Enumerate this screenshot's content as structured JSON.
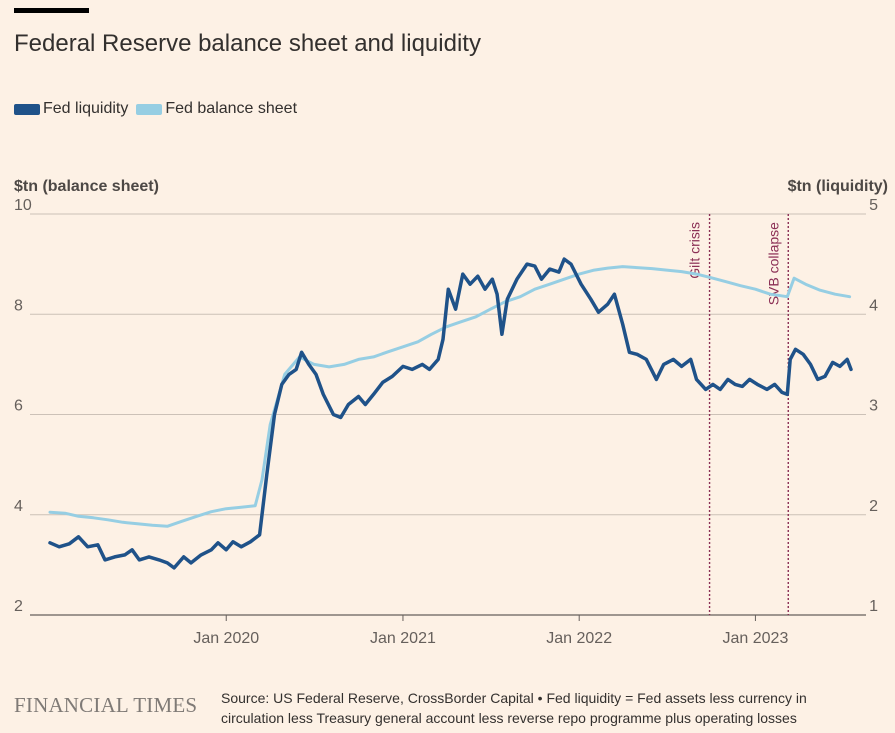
{
  "header": {
    "title": "Federal Reserve balance sheet and liquidity"
  },
  "legend": {
    "items": [
      {
        "label": "Fed liquidity",
        "color": "#1f5289"
      },
      {
        "label": "Fed balance sheet",
        "color": "#96cee3"
      }
    ]
  },
  "footer": {
    "brand": "FINANCIAL TIMES",
    "source": "Source: US Federal Reserve, CrossBorder Capital • Fed liquidity = Fed assets less currency in circulation less Treasury general account less reverse repo programme plus operating losses"
  },
  "chart_data": {
    "type": "line",
    "title": "Federal Reserve balance sheet and liquidity",
    "grid": true,
    "legend_position": "top-left",
    "y_left": {
      "label": "$tn (balance sheet)",
      "range": [
        2,
        10
      ],
      "ticks": [
        "2",
        "4",
        "6",
        "8",
        "10"
      ]
    },
    "y_right": {
      "label": "$tn (liquidity)",
      "range": [
        1,
        5
      ],
      "ticks": [
        "1",
        "2",
        "3",
        "4",
        "5"
      ]
    },
    "x": {
      "range": [
        "2019-01-01",
        "2023-07-20"
      ],
      "ticks": [
        {
          "date": "2020-01-01",
          "label": "Jan 2020"
        },
        {
          "date": "2021-01-01",
          "label": "Jan 2021"
        },
        {
          "date": "2022-01-01",
          "label": "Jan 2022"
        },
        {
          "date": "2023-01-01",
          "label": "Jan 2023"
        }
      ]
    },
    "annotations": [
      {
        "date": "2022-09-28",
        "label": "Gilt crisis"
      },
      {
        "date": "2023-03-10",
        "label": "SVB collapse"
      }
    ],
    "series": [
      {
        "name": "Fed balance sheet",
        "axis": "left",
        "color": "#96cee3",
        "points": [
          [
            "2019-01-01",
            4.05
          ],
          [
            "2019-02-01",
            4.03
          ],
          [
            "2019-03-01",
            3.97
          ],
          [
            "2019-04-01",
            3.94
          ],
          [
            "2019-05-01",
            3.9
          ],
          [
            "2019-06-01",
            3.85
          ],
          [
            "2019-07-01",
            3.82
          ],
          [
            "2019-08-01",
            3.79
          ],
          [
            "2019-09-01",
            3.77
          ],
          [
            "2019-10-01",
            3.87
          ],
          [
            "2019-11-01",
            3.97
          ],
          [
            "2019-12-01",
            4.06
          ],
          [
            "2020-01-01",
            4.12
          ],
          [
            "2020-02-01",
            4.15
          ],
          [
            "2020-03-01",
            4.18
          ],
          [
            "2020-03-15",
            4.7
          ],
          [
            "2020-04-01",
            5.8
          ],
          [
            "2020-05-01",
            6.8
          ],
          [
            "2020-06-01",
            7.15
          ],
          [
            "2020-07-01",
            7.0
          ],
          [
            "2020-08-01",
            6.95
          ],
          [
            "2020-09-01",
            7.0
          ],
          [
            "2020-10-01",
            7.1
          ],
          [
            "2020-11-01",
            7.15
          ],
          [
            "2020-12-01",
            7.25
          ],
          [
            "2021-01-01",
            7.35
          ],
          [
            "2021-02-01",
            7.45
          ],
          [
            "2021-03-01",
            7.6
          ],
          [
            "2021-04-01",
            7.75
          ],
          [
            "2021-05-01",
            7.85
          ],
          [
            "2021-06-01",
            7.95
          ],
          [
            "2021-07-01",
            8.1
          ],
          [
            "2021-08-01",
            8.25
          ],
          [
            "2021-09-01",
            8.35
          ],
          [
            "2021-10-01",
            8.5
          ],
          [
            "2021-11-01",
            8.6
          ],
          [
            "2021-12-01",
            8.7
          ],
          [
            "2022-01-01",
            8.8
          ],
          [
            "2022-02-01",
            8.88
          ],
          [
            "2022-03-01",
            8.92
          ],
          [
            "2022-04-01",
            8.95
          ],
          [
            "2022-05-01",
            8.93
          ],
          [
            "2022-06-01",
            8.91
          ],
          [
            "2022-07-01",
            8.88
          ],
          [
            "2022-08-01",
            8.85
          ],
          [
            "2022-09-01",
            8.8
          ],
          [
            "2022-10-01",
            8.73
          ],
          [
            "2022-11-01",
            8.65
          ],
          [
            "2022-12-01",
            8.57
          ],
          [
            "2023-01-01",
            8.5
          ],
          [
            "2023-02-01",
            8.4
          ],
          [
            "2023-03-08",
            8.35
          ],
          [
            "2023-03-22",
            8.72
          ],
          [
            "2023-04-15",
            8.6
          ],
          [
            "2023-05-15",
            8.48
          ],
          [
            "2023-06-15",
            8.4
          ],
          [
            "2023-07-15",
            8.35
          ]
        ]
      },
      {
        "name": "Fed liquidity",
        "axis": "right",
        "color": "#1f5289",
        "points": [
          [
            "2019-01-01",
            1.72
          ],
          [
            "2019-01-20",
            1.68
          ],
          [
            "2019-02-10",
            1.71
          ],
          [
            "2019-03-01",
            1.78
          ],
          [
            "2019-03-20",
            1.68
          ],
          [
            "2019-04-10",
            1.7
          ],
          [
            "2019-04-25",
            1.55
          ],
          [
            "2019-05-15",
            1.58
          ],
          [
            "2019-06-05",
            1.6
          ],
          [
            "2019-06-20",
            1.65
          ],
          [
            "2019-07-05",
            1.55
          ],
          [
            "2019-07-25",
            1.58
          ],
          [
            "2019-08-15",
            1.55
          ],
          [
            "2019-09-01",
            1.52
          ],
          [
            "2019-09-15",
            1.47
          ],
          [
            "2019-10-05",
            1.58
          ],
          [
            "2019-10-20",
            1.52
          ],
          [
            "2019-11-10",
            1.6
          ],
          [
            "2019-12-01",
            1.65
          ],
          [
            "2019-12-15",
            1.72
          ],
          [
            "2020-01-01",
            1.65
          ],
          [
            "2020-01-15",
            1.73
          ],
          [
            "2020-02-01",
            1.68
          ],
          [
            "2020-02-20",
            1.73
          ],
          [
            "2020-03-10",
            1.8
          ],
          [
            "2020-03-25",
            2.4
          ],
          [
            "2020-04-10",
            3.0
          ],
          [
            "2020-04-25",
            3.3
          ],
          [
            "2020-05-10",
            3.4
          ],
          [
            "2020-05-25",
            3.45
          ],
          [
            "2020-06-05",
            3.62
          ],
          [
            "2020-06-20",
            3.5
          ],
          [
            "2020-07-05",
            3.4
          ],
          [
            "2020-07-20",
            3.2
          ],
          [
            "2020-08-10",
            3.0
          ],
          [
            "2020-08-25",
            2.97
          ],
          [
            "2020-09-10",
            3.1
          ],
          [
            "2020-10-01",
            3.18
          ],
          [
            "2020-10-15",
            3.1
          ],
          [
            "2020-11-01",
            3.2
          ],
          [
            "2020-11-20",
            3.32
          ],
          [
            "2020-12-10",
            3.38
          ],
          [
            "2021-01-01",
            3.48
          ],
          [
            "2021-01-20",
            3.45
          ],
          [
            "2021-02-10",
            3.5
          ],
          [
            "2021-02-25",
            3.45
          ],
          [
            "2021-03-15",
            3.55
          ],
          [
            "2021-03-25",
            3.75
          ],
          [
            "2021-04-05",
            4.25
          ],
          [
            "2021-04-20",
            4.05
          ],
          [
            "2021-05-05",
            4.4
          ],
          [
            "2021-05-20",
            4.3
          ],
          [
            "2021-06-05",
            4.38
          ],
          [
            "2021-06-20",
            4.25
          ],
          [
            "2021-07-05",
            4.35
          ],
          [
            "2021-07-15",
            4.2
          ],
          [
            "2021-07-25",
            3.8
          ],
          [
            "2021-08-05",
            4.15
          ],
          [
            "2021-08-25",
            4.35
          ],
          [
            "2021-09-15",
            4.5
          ],
          [
            "2021-10-01",
            4.48
          ],
          [
            "2021-10-15",
            4.35
          ],
          [
            "2021-11-01",
            4.45
          ],
          [
            "2021-11-20",
            4.42
          ],
          [
            "2021-12-01",
            4.55
          ],
          [
            "2021-12-15",
            4.5
          ],
          [
            "2022-01-05",
            4.3
          ],
          [
            "2022-01-25",
            4.15
          ],
          [
            "2022-02-10",
            4.02
          ],
          [
            "2022-03-01",
            4.1
          ],
          [
            "2022-03-15",
            4.2
          ],
          [
            "2022-04-01",
            3.9
          ],
          [
            "2022-04-15",
            3.62
          ],
          [
            "2022-05-01",
            3.6
          ],
          [
            "2022-05-20",
            3.55
          ],
          [
            "2022-06-10",
            3.35
          ],
          [
            "2022-06-25",
            3.5
          ],
          [
            "2022-07-15",
            3.55
          ],
          [
            "2022-08-01",
            3.48
          ],
          [
            "2022-08-20",
            3.55
          ],
          [
            "2022-09-01",
            3.35
          ],
          [
            "2022-09-20",
            3.25
          ],
          [
            "2022-10-05",
            3.3
          ],
          [
            "2022-10-20",
            3.25
          ],
          [
            "2022-11-05",
            3.35
          ],
          [
            "2022-11-20",
            3.3
          ],
          [
            "2022-12-05",
            3.28
          ],
          [
            "2022-12-20",
            3.35
          ],
          [
            "2023-01-05",
            3.3
          ],
          [
            "2023-01-25",
            3.25
          ],
          [
            "2023-02-10",
            3.3
          ],
          [
            "2023-02-25",
            3.22
          ],
          [
            "2023-03-08",
            3.2
          ],
          [
            "2023-03-14",
            3.55
          ],
          [
            "2023-03-25",
            3.65
          ],
          [
            "2023-04-10",
            3.6
          ],
          [
            "2023-04-25",
            3.5
          ],
          [
            "2023-05-10",
            3.35
          ],
          [
            "2023-05-25",
            3.38
          ],
          [
            "2023-06-10",
            3.52
          ],
          [
            "2023-06-25",
            3.48
          ],
          [
            "2023-07-10",
            3.55
          ],
          [
            "2023-07-18",
            3.45
          ]
        ]
      }
    ]
  }
}
